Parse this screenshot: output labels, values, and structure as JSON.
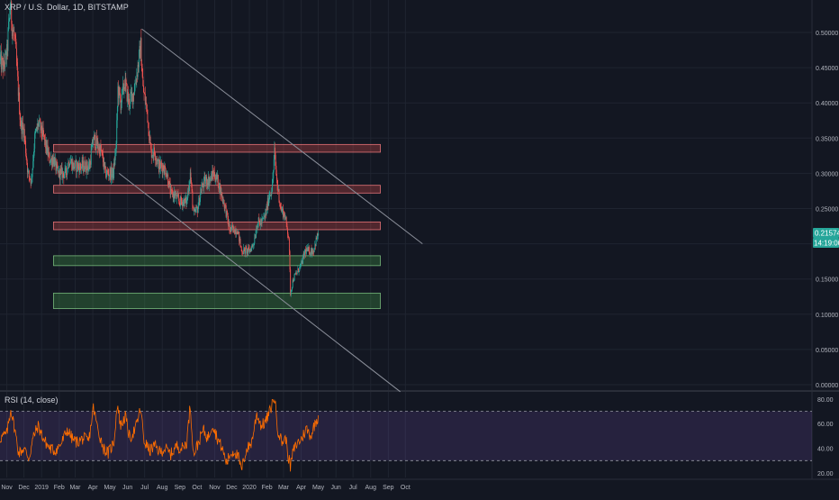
{
  "symbol": {
    "title": "XRP / U.S. Dollar, 1D, BITSTAMP"
  },
  "rsi_panel": {
    "title": "RSI (14, close)"
  },
  "badges": {
    "price": "0.21574",
    "countdown": "14:19:00"
  },
  "colors": {
    "background": "#131722",
    "grid": "#1f2430",
    "up_candle": "#26a69a",
    "down_candle": "#ef5350",
    "resistance_fill": "#ef5350",
    "support_fill": "#4caf50",
    "trendline": "#8a8e99",
    "rsi_line": "#ff6d00",
    "rsi_band": "#7e57c2",
    "price_badge": "#26a69a",
    "countdown_badge": "#26a69a"
  },
  "chart_data": [
    {
      "type": "candlestick",
      "title": "XRP / U.S. Dollar, 1D, BITSTAMP",
      "ylim": [
        0.0,
        0.55
      ],
      "y_ticks": [
        "0.00000",
        "0.05000",
        "0.10000",
        "0.15000",
        "0.20000",
        "0.25000",
        "0.30000",
        "0.35000",
        "0.40000",
        "0.45000",
        "0.50000"
      ],
      "x_ticks": [
        "Nov",
        "Dec",
        "2019",
        "Feb",
        "Mar",
        "Apr",
        "May",
        "Jun",
        "Jul",
        "Aug",
        "Sep",
        "Oct",
        "Nov",
        "Dec",
        "2020",
        "Feb",
        "Mar",
        "Apr",
        "May",
        "Jun",
        "Jul",
        "Aug",
        "Sep",
        "Oct"
      ],
      "x_tick_dates": [
        "2018-11-01",
        "2018-12-01",
        "2019-01-01",
        "2019-02-01",
        "2019-03-01",
        "2019-04-01",
        "2019-05-01",
        "2019-06-01",
        "2019-07-01",
        "2019-08-01",
        "2019-09-01",
        "2019-10-01",
        "2019-11-01",
        "2019-12-01",
        "2020-01-01",
        "2020-02-01",
        "2020-03-01",
        "2020-04-01",
        "2020-05-01",
        "2020-06-01",
        "2020-07-01",
        "2020-08-01",
        "2020-09-01",
        "2020-10-01"
      ],
      "close_path": [
        [
          "2018-10-20",
          0.46
        ],
        [
          "2018-10-26",
          0.45
        ],
        [
          "2018-11-01",
          0.47
        ],
        [
          "2018-11-07",
          0.54
        ],
        [
          "2018-11-10",
          0.51
        ],
        [
          "2018-11-15",
          0.49
        ],
        [
          "2018-11-20",
          0.43
        ],
        [
          "2018-11-25",
          0.37
        ],
        [
          "2018-12-01",
          0.36
        ],
        [
          "2018-12-08",
          0.3
        ],
        [
          "2018-12-14",
          0.29
        ],
        [
          "2018-12-20",
          0.35
        ],
        [
          "2018-12-26",
          0.37
        ],
        [
          "2019-01-01",
          0.36
        ],
        [
          "2019-01-08",
          0.34
        ],
        [
          "2019-01-15",
          0.32
        ],
        [
          "2019-01-22",
          0.32
        ],
        [
          "2019-01-29",
          0.3
        ],
        [
          "2019-02-05",
          0.3
        ],
        [
          "2019-02-12",
          0.3
        ],
        [
          "2019-02-19",
          0.32
        ],
        [
          "2019-02-26",
          0.31
        ],
        [
          "2019-03-05",
          0.31
        ],
        [
          "2019-03-12",
          0.31
        ],
        [
          "2019-03-19",
          0.31
        ],
        [
          "2019-03-26",
          0.31
        ],
        [
          "2019-04-02",
          0.35
        ],
        [
          "2019-04-09",
          0.34
        ],
        [
          "2019-04-16",
          0.33
        ],
        [
          "2019-04-23",
          0.3
        ],
        [
          "2019-04-30",
          0.3
        ],
        [
          "2019-05-07",
          0.3
        ],
        [
          "2019-05-12",
          0.34
        ],
        [
          "2019-05-15",
          0.42
        ],
        [
          "2019-05-20",
          0.4
        ],
        [
          "2019-05-27",
          0.43
        ],
        [
          "2019-06-03",
          0.4
        ],
        [
          "2019-06-10",
          0.41
        ],
        [
          "2019-06-17",
          0.44
        ],
        [
          "2019-06-24",
          0.48
        ],
        [
          "2019-06-28",
          0.42
        ],
        [
          "2019-07-05",
          0.39
        ],
        [
          "2019-07-12",
          0.33
        ],
        [
          "2019-07-19",
          0.33
        ],
        [
          "2019-07-26",
          0.31
        ],
        [
          "2019-08-02",
          0.31
        ],
        [
          "2019-08-09",
          0.3
        ],
        [
          "2019-08-16",
          0.27
        ],
        [
          "2019-08-23",
          0.27
        ],
        [
          "2019-08-30",
          0.26
        ],
        [
          "2019-09-06",
          0.26
        ],
        [
          "2019-09-13",
          0.26
        ],
        [
          "2019-09-19",
          0.3
        ],
        [
          "2019-09-25",
          0.24
        ],
        [
          "2019-10-02",
          0.25
        ],
        [
          "2019-10-09",
          0.28
        ],
        [
          "2019-10-16",
          0.29
        ],
        [
          "2019-10-23",
          0.29
        ],
        [
          "2019-10-30",
          0.3
        ],
        [
          "2019-11-06",
          0.29
        ],
        [
          "2019-11-13",
          0.27
        ],
        [
          "2019-11-20",
          0.25
        ],
        [
          "2019-11-27",
          0.22
        ],
        [
          "2019-12-04",
          0.22
        ],
        [
          "2019-12-11",
          0.22
        ],
        [
          "2019-12-18",
          0.19
        ],
        [
          "2019-12-25",
          0.19
        ],
        [
          "2020-01-01",
          0.19
        ],
        [
          "2020-01-08",
          0.2
        ],
        [
          "2020-01-15",
          0.23
        ],
        [
          "2020-01-22",
          0.23
        ],
        [
          "2020-01-29",
          0.24
        ],
        [
          "2020-02-05",
          0.27
        ],
        [
          "2020-02-10",
          0.28
        ],
        [
          "2020-02-14",
          0.33
        ],
        [
          "2020-02-18",
          0.29
        ],
        [
          "2020-02-25",
          0.25
        ],
        [
          "2020-03-03",
          0.24
        ],
        [
          "2020-03-10",
          0.21
        ],
        [
          "2020-03-12",
          0.16
        ],
        [
          "2020-03-13",
          0.13
        ],
        [
          "2020-03-18",
          0.15
        ],
        [
          "2020-03-25",
          0.16
        ],
        [
          "2020-04-01",
          0.17
        ],
        [
          "2020-04-08",
          0.19
        ],
        [
          "2020-04-15",
          0.19
        ],
        [
          "2020-04-22",
          0.19
        ],
        [
          "2020-04-29",
          0.21
        ],
        [
          "2020-05-01",
          0.216
        ]
      ],
      "rsi": {
        "ylim": [
          15,
          88
        ],
        "y_ticks": [
          "20.00",
          "40.00",
          "60.00",
          "80.00"
        ],
        "bands": [
          30,
          70
        ],
        "path": [
          [
            "2018-10-20",
            48
          ],
          [
            "2018-11-01",
            52
          ],
          [
            "2018-11-08",
            72
          ],
          [
            "2018-11-15",
            55
          ],
          [
            "2018-11-22",
            36
          ],
          [
            "2018-12-01",
            40
          ],
          [
            "2018-12-10",
            32
          ],
          [
            "2018-12-18",
            50
          ],
          [
            "2018-12-26",
            58
          ],
          [
            "2019-01-05",
            47
          ],
          [
            "2019-01-15",
            40
          ],
          [
            "2019-01-25",
            38
          ],
          [
            "2019-02-05",
            44
          ],
          [
            "2019-02-15",
            55
          ],
          [
            "2019-02-25",
            47
          ],
          [
            "2019-03-05",
            45
          ],
          [
            "2019-03-15",
            48
          ],
          [
            "2019-03-25",
            46
          ],
          [
            "2019-04-02",
            73
          ],
          [
            "2019-04-10",
            55
          ],
          [
            "2019-04-20",
            40
          ],
          [
            "2019-04-28",
            36
          ],
          [
            "2019-05-08",
            45
          ],
          [
            "2019-05-14",
            76
          ],
          [
            "2019-05-20",
            58
          ],
          [
            "2019-05-28",
            66
          ],
          [
            "2019-06-05",
            48
          ],
          [
            "2019-06-15",
            56
          ],
          [
            "2019-06-24",
            72
          ],
          [
            "2019-06-30",
            46
          ],
          [
            "2019-07-10",
            38
          ],
          [
            "2019-07-18",
            42
          ],
          [
            "2019-07-28",
            37
          ],
          [
            "2019-08-06",
            40
          ],
          [
            "2019-08-16",
            35
          ],
          [
            "2019-08-26",
            42
          ],
          [
            "2019-09-05",
            40
          ],
          [
            "2019-09-13",
            45
          ],
          [
            "2019-09-19",
            75
          ],
          [
            "2019-09-25",
            35
          ],
          [
            "2019-10-03",
            44
          ],
          [
            "2019-10-12",
            55
          ],
          [
            "2019-10-20",
            48
          ],
          [
            "2019-10-28",
            60
          ],
          [
            "2019-11-06",
            48
          ],
          [
            "2019-11-14",
            40
          ],
          [
            "2019-11-22",
            28
          ],
          [
            "2019-11-28",
            35
          ],
          [
            "2019-12-06",
            38
          ],
          [
            "2019-12-13",
            32
          ],
          [
            "2019-12-18",
            22
          ],
          [
            "2019-12-26",
            38
          ],
          [
            "2020-01-05",
            45
          ],
          [
            "2020-01-14",
            68
          ],
          [
            "2020-01-22",
            58
          ],
          [
            "2020-01-30",
            62
          ],
          [
            "2020-02-06",
            70
          ],
          [
            "2020-02-14",
            82
          ],
          [
            "2020-02-20",
            55
          ],
          [
            "2020-02-27",
            45
          ],
          [
            "2020-03-05",
            48
          ],
          [
            "2020-03-10",
            32
          ],
          [
            "2020-03-13",
            25
          ],
          [
            "2020-03-18",
            38
          ],
          [
            "2020-03-25",
            44
          ],
          [
            "2020-04-02",
            48
          ],
          [
            "2020-04-10",
            56
          ],
          [
            "2020-04-18",
            50
          ],
          [
            "2020-04-25",
            60
          ],
          [
            "2020-05-01",
            66
          ]
        ]
      }
    }
  ],
  "drawings": {
    "resistance_zones": [
      {
        "from": "2019-01-22",
        "to": "2020-08-18",
        "low": 0.33,
        "high": 0.341
      },
      {
        "from": "2019-01-22",
        "to": "2020-08-18",
        "low": 0.272,
        "high": 0.283
      },
      {
        "from": "2019-01-22",
        "to": "2020-08-18",
        "low": 0.22,
        "high": 0.231
      }
    ],
    "support_zones": [
      {
        "from": "2019-01-22",
        "to": "2020-08-18",
        "low": 0.169,
        "high": 0.183
      },
      {
        "from": "2019-01-22",
        "to": "2020-08-18",
        "low": 0.108,
        "high": 0.13
      }
    ],
    "trendlines": [
      {
        "from": [
          "2019-06-26",
          0.505
        ],
        "to": [
          "2020-10-31",
          0.2
        ]
      },
      {
        "from": [
          "2019-05-17",
          0.3
        ],
        "to": [
          "2020-09-22",
          -0.01
        ]
      }
    ]
  }
}
